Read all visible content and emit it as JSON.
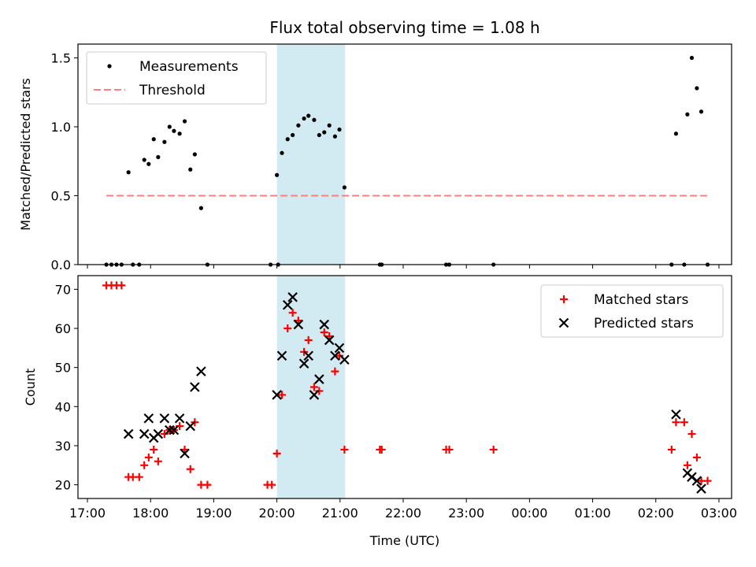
{
  "chart_data": {
    "title": "Flux total observing time = 1.08 h",
    "xlabel": "Time (UTC)",
    "x_units": "hours since 17:00 UTC",
    "xlim": [
      -0.15,
      10.2
    ],
    "x_ticks": [
      {
        "value": 0,
        "label": "17:00"
      },
      {
        "value": 1,
        "label": "18:00"
      },
      {
        "value": 2,
        "label": "19:00"
      },
      {
        "value": 3,
        "label": "20:00"
      },
      {
        "value": 4,
        "label": "21:00"
      },
      {
        "value": 5,
        "label": "22:00"
      },
      {
        "value": 6,
        "label": "23:00"
      },
      {
        "value": 7,
        "label": "00:00"
      },
      {
        "value": 8,
        "label": "01:00"
      },
      {
        "value": 9,
        "label": "02:00"
      },
      {
        "value": 10,
        "label": "03:00"
      }
    ],
    "highlight_span": [
      3.0,
      4.08
    ],
    "highlight_color": "#add8e6",
    "panels": [
      {
        "id": "ratio",
        "type": "scatter",
        "ylabel": "Matched/Predicted stars",
        "ylim": [
          0,
          1.6
        ],
        "y_ticks": [
          {
            "value": 0,
            "label": "0.0"
          },
          {
            "value": 0.5,
            "label": "0.5"
          },
          {
            "value": 1.0,
            "label": "1.0"
          },
          {
            "value": 1.5,
            "label": "1.5"
          }
        ],
        "legend_position": "upper-left",
        "series": [
          {
            "name": "Measurements",
            "marker": "dot",
            "color": "#000000",
            "points": [
              [
                0.3,
                0
              ],
              [
                0.38,
                0
              ],
              [
                0.46,
                0
              ],
              [
                0.54,
                0
              ],
              [
                0.72,
                0
              ],
              [
                0.82,
                0
              ],
              [
                0.65,
                0.67
              ],
              [
                0.9,
                0.76
              ],
              [
                0.97,
                0.73
              ],
              [
                1.05,
                0.91
              ],
              [
                1.12,
                0.78
              ],
              [
                1.22,
                0.89
              ],
              [
                1.3,
                1.0
              ],
              [
                1.37,
                0.97
              ],
              [
                1.46,
                0.95
              ],
              [
                1.54,
                1.04
              ],
              [
                1.63,
                0.69
              ],
              [
                1.7,
                0.8
              ],
              [
                1.8,
                0.41
              ],
              [
                1.9,
                0
              ],
              [
                2.9,
                0
              ],
              [
                3.02,
                0
              ],
              [
                3.0,
                0.65
              ],
              [
                3.08,
                0.81
              ],
              [
                3.17,
                0.91
              ],
              [
                3.25,
                0.94
              ],
              [
                3.34,
                1.01
              ],
              [
                3.43,
                1.06
              ],
              [
                3.5,
                1.08
              ],
              [
                3.59,
                1.05
              ],
              [
                3.67,
                0.94
              ],
              [
                3.75,
                0.96
              ],
              [
                3.83,
                1.01
              ],
              [
                3.92,
                0.93
              ],
              [
                3.99,
                0.98
              ],
              [
                4.07,
                0.56
              ],
              [
                4.63,
                0
              ],
              [
                4.66,
                0
              ],
              [
                5.68,
                0
              ],
              [
                5.73,
                0
              ],
              [
                6.43,
                0
              ],
              [
                9.25,
                0
              ],
              [
                9.32,
                0.95
              ],
              [
                9.45,
                0
              ],
              [
                9.5,
                1.09
              ],
              [
                9.57,
                1.5
              ],
              [
                9.65,
                1.28
              ],
              [
                9.72,
                1.11
              ],
              [
                9.82,
                0
              ]
            ]
          },
          {
            "name": "Threshold",
            "marker": "dashed-line",
            "color": "#ff7f7f",
            "points": [
              [
                0.3,
                0.5
              ],
              [
                9.82,
                0.5
              ]
            ]
          }
        ]
      },
      {
        "id": "counts",
        "type": "scatter",
        "ylabel": "Count",
        "ylim": [
          16.5,
          73.5
        ],
        "y_ticks": [
          {
            "value": 20,
            "label": "20"
          },
          {
            "value": 30,
            "label": "30"
          },
          {
            "value": 40,
            "label": "40"
          },
          {
            "value": 50,
            "label": "50"
          },
          {
            "value": 60,
            "label": "60"
          },
          {
            "value": 70,
            "label": "70"
          }
        ],
        "legend_position": "upper-right",
        "series": [
          {
            "name": "Matched stars",
            "marker": "plus",
            "color": "#ff0000",
            "points": [
              [
                0.3,
                71
              ],
              [
                0.38,
                71
              ],
              [
                0.46,
                71
              ],
              [
                0.54,
                71
              ],
              [
                0.65,
                22
              ],
              [
                0.72,
                22
              ],
              [
                0.82,
                22
              ],
              [
                0.9,
                25
              ],
              [
                0.97,
                27
              ],
              [
                1.05,
                29
              ],
              [
                1.12,
                26
              ],
              [
                1.22,
                33
              ],
              [
                1.3,
                34
              ],
              [
                1.37,
                34
              ],
              [
                1.46,
                35
              ],
              [
                1.54,
                29
              ],
              [
                1.63,
                24
              ],
              [
                1.7,
                36
              ],
              [
                1.8,
                20
              ],
              [
                1.9,
                20
              ],
              [
                2.85,
                20
              ],
              [
                2.92,
                20
              ],
              [
                3.0,
                28
              ],
              [
                3.08,
                43
              ],
              [
                3.17,
                60
              ],
              [
                3.25,
                64
              ],
              [
                3.34,
                62
              ],
              [
                3.43,
                54
              ],
              [
                3.5,
                57
              ],
              [
                3.59,
                45
              ],
              [
                3.67,
                44
              ],
              [
                3.75,
                59
              ],
              [
                3.83,
                58
              ],
              [
                3.92,
                49
              ],
              [
                3.99,
                53
              ],
              [
                4.07,
                29
              ],
              [
                4.63,
                29
              ],
              [
                4.66,
                29
              ],
              [
                5.68,
                29
              ],
              [
                5.73,
                29
              ],
              [
                6.43,
                29
              ],
              [
                9.25,
                29
              ],
              [
                9.32,
                36
              ],
              [
                9.45,
                36
              ],
              [
                9.5,
                25
              ],
              [
                9.57,
                33
              ],
              [
                9.65,
                27
              ],
              [
                9.72,
                21
              ],
              [
                9.82,
                21
              ]
            ]
          },
          {
            "name": "Predicted stars",
            "marker": "x",
            "color": "#000000",
            "points": [
              [
                0.65,
                33
              ],
              [
                0.9,
                33
              ],
              [
                0.97,
                37
              ],
              [
                1.05,
                32
              ],
              [
                1.12,
                33
              ],
              [
                1.22,
                37
              ],
              [
                1.3,
                34
              ],
              [
                1.37,
                34
              ],
              [
                1.46,
                37
              ],
              [
                1.54,
                28
              ],
              [
                1.63,
                35
              ],
              [
                1.7,
                45
              ],
              [
                1.8,
                49
              ],
              [
                3.0,
                43
              ],
              [
                3.08,
                53
              ],
              [
                3.17,
                66
              ],
              [
                3.25,
                68
              ],
              [
                3.34,
                61
              ],
              [
                3.43,
                51
              ],
              [
                3.5,
                53
              ],
              [
                3.59,
                43
              ],
              [
                3.67,
                47
              ],
              [
                3.75,
                61
              ],
              [
                3.83,
                57
              ],
              [
                3.92,
                53
              ],
              [
                3.99,
                55
              ],
              [
                4.07,
                52
              ],
              [
                9.32,
                38
              ],
              [
                9.5,
                23
              ],
              [
                9.57,
                22
              ],
              [
                9.65,
                21
              ],
              [
                9.72,
                19
              ]
            ]
          }
        ]
      }
    ]
  }
}
